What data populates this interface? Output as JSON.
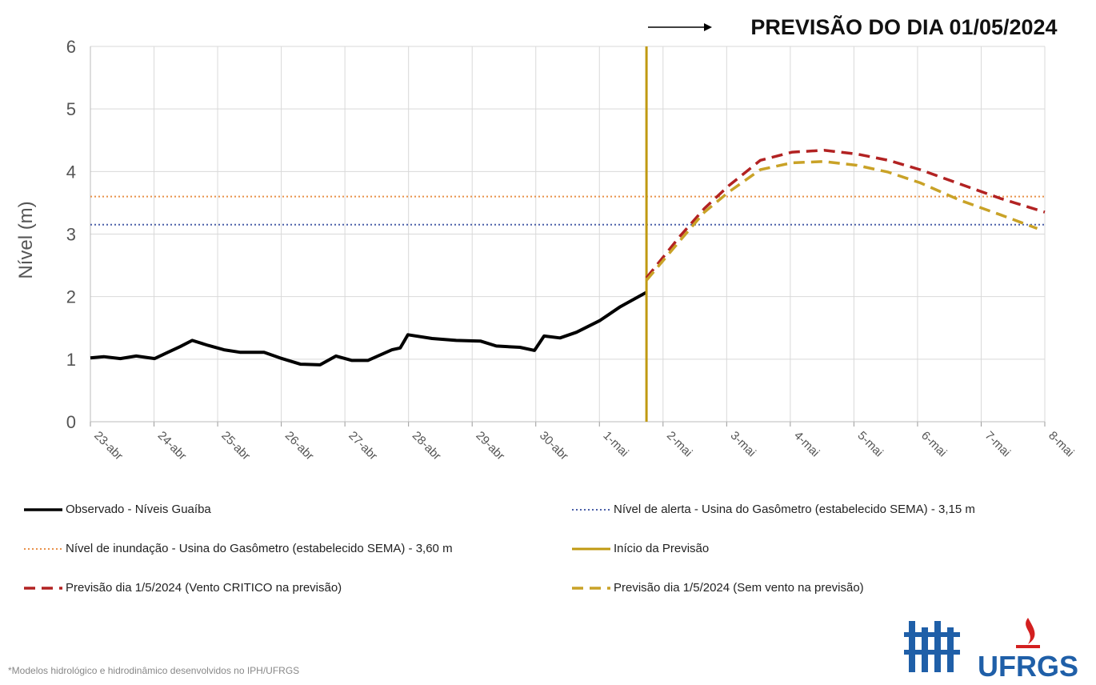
{
  "chart_data": {
    "type": "line",
    "title": "PREVISÃO DO DIA 01/05/2024",
    "ylabel": "Nível (m)",
    "footnote": "*Modelos hidrológico e hidrodinâmico desenvolvidos    no IPH/UFRGS",
    "logo_text": "UFRGS",
    "xlim": [
      0,
      15
    ],
    "xticks": [
      {
        "value": 0,
        "label": "23-abr"
      },
      {
        "value": 1,
        "label": "24-abr"
      },
      {
        "value": 2,
        "label": "25-abr"
      },
      {
        "value": 3,
        "label": "26-abr"
      },
      {
        "value": 4,
        "label": "27-abr"
      },
      {
        "value": 5,
        "label": "28-abr"
      },
      {
        "value": 6,
        "label": "29-abr"
      },
      {
        "value": 7,
        "label": "30-abr"
      },
      {
        "value": 8,
        "label": "1-mai"
      },
      {
        "value": 9,
        "label": "2-mai"
      },
      {
        "value": 10,
        "label": "3-mai"
      },
      {
        "value": 11,
        "label": "4-mai"
      },
      {
        "value": 12,
        "label": "5-mai"
      },
      {
        "value": 13,
        "label": "6-mai"
      },
      {
        "value": 14,
        "label": "7-mai"
      },
      {
        "value": 15,
        "label": "8-mai"
      }
    ],
    "ylim": [
      0,
      6
    ],
    "yticks": [
      0,
      1,
      2,
      3,
      4,
      5,
      6
    ],
    "grid": true,
    "series": [
      {
        "name": "Observado - Níveis Guaíba",
        "color": "#000000",
        "dash": "solid",
        "width": 4,
        "x": [
          0,
          0.21,
          0.47,
          0.72,
          1.01,
          1.22,
          1.41,
          1.6,
          1.85,
          2.1,
          2.35,
          2.73,
          2.98,
          3.3,
          3.61,
          3.86,
          4.11,
          4.36,
          4.74,
          4.87,
          4.99,
          5.37,
          5.75,
          6.13,
          6.38,
          6.75,
          6.98,
          7.13,
          7.38,
          7.64,
          8.01,
          8.33,
          8.74
        ],
        "values": [
          1.02,
          1.04,
          1.01,
          1.05,
          1.01,
          1.11,
          1.2,
          1.3,
          1.22,
          1.15,
          1.11,
          1.11,
          1.02,
          0.92,
          0.91,
          1.05,
          0.98,
          0.98,
          1.15,
          1.18,
          1.39,
          1.33,
          1.3,
          1.29,
          1.21,
          1.19,
          1.14,
          1.37,
          1.34,
          1.43,
          1.62,
          1.84,
          2.07
        ]
      },
      {
        "name": "Nível de alerta - Usina do Gasômetro (estabelecido SEMA) - 3,15 m",
        "color": "#4a5fa8",
        "dash": "dotted",
        "width": 2,
        "x": [
          0,
          15
        ],
        "values": [
          3.15,
          3.15
        ]
      },
      {
        "name": "Nível de inundação - Usina do Gasômetro (estabelecido SEMA) - 3,60 m",
        "color": "#e8914a",
        "dash": "dotted",
        "width": 2,
        "x": [
          0,
          15
        ],
        "values": [
          3.6,
          3.6
        ]
      },
      {
        "name": "Início da Previsão",
        "color": "#c09a12",
        "dash": "solid",
        "width": 3,
        "x": [
          8.74,
          8.74
        ],
        "values": [
          0,
          6
        ]
      },
      {
        "name": "Previsão dia 1/5/2024 (Vento CRITICO na previsão)",
        "color": "#b22222",
        "dash": "dashed",
        "width": 3.5,
        "x": [
          8.74,
          9.27,
          9.65,
          10.03,
          10.53,
          11.03,
          11.53,
          12.04,
          12.54,
          13.04,
          13.67,
          14.3,
          15
        ],
        "values": [
          2.3,
          2.97,
          3.41,
          3.77,
          4.18,
          4.31,
          4.34,
          4.28,
          4.18,
          4.03,
          3.8,
          3.57,
          3.35
        ]
      },
      {
        "name": "Previsão dia 1/5/2024 (Sem vento na previsão)",
        "color": "#c9a227",
        "dash": "dashed",
        "width": 3.5,
        "x": [
          8.74,
          9.27,
          9.65,
          10.03,
          10.53,
          11.03,
          11.53,
          12.04,
          12.54,
          13.04,
          13.67,
          14.3,
          14.88
        ],
        "values": [
          2.26,
          2.9,
          3.35,
          3.67,
          4.03,
          4.14,
          4.16,
          4.1,
          3.99,
          3.82,
          3.54,
          3.31,
          3.09
        ]
      }
    ]
  }
}
